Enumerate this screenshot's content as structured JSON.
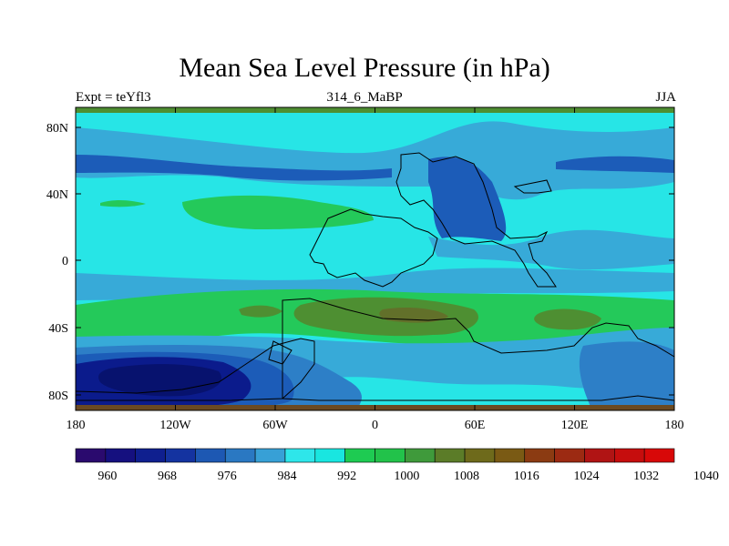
{
  "title": "Mean Sea Level Pressure (in hPa)",
  "expt_label": "Expt = teYfl3",
  "period_label": "314_6_MaBP",
  "season_label": "JJA",
  "axes": {
    "x_ticks": [
      "180",
      "120W",
      "60W",
      "0",
      "60E",
      "120E",
      "180"
    ],
    "y_ticks": [
      "80N",
      "40N",
      "0",
      "40S",
      "80S"
    ]
  },
  "colorbar": {
    "labels": [
      "960",
      "968",
      "976",
      "984",
      "992",
      "1000",
      "1008",
      "1016",
      "1024",
      "1032",
      "1040"
    ],
    "colors": [
      "#2a0a6e",
      "#15107f",
      "#0f1f8f",
      "#1433a0",
      "#1d58b3",
      "#2a78c2",
      "#37a0d6",
      "#2ee6ea",
      "#19e6e0",
      "#1ecb52",
      "#22c24a",
      "#3f9a3b",
      "#5b7c28",
      "#6e6a1b",
      "#7a5a14",
      "#8b3b12",
      "#9c2a12",
      "#b01414",
      "#c60d0d",
      "#d80808"
    ]
  },
  "palette": {
    "deep_low": "#0b1b8c",
    "low": "#1c5cb8",
    "mid_low": "#2d7fc7",
    "light_low": "#37aad8",
    "normal": "#27e5e6",
    "high": "#24c95a",
    "higher": "#4e8f32",
    "highest": "#62702a",
    "border": "#6b4a22"
  }
}
